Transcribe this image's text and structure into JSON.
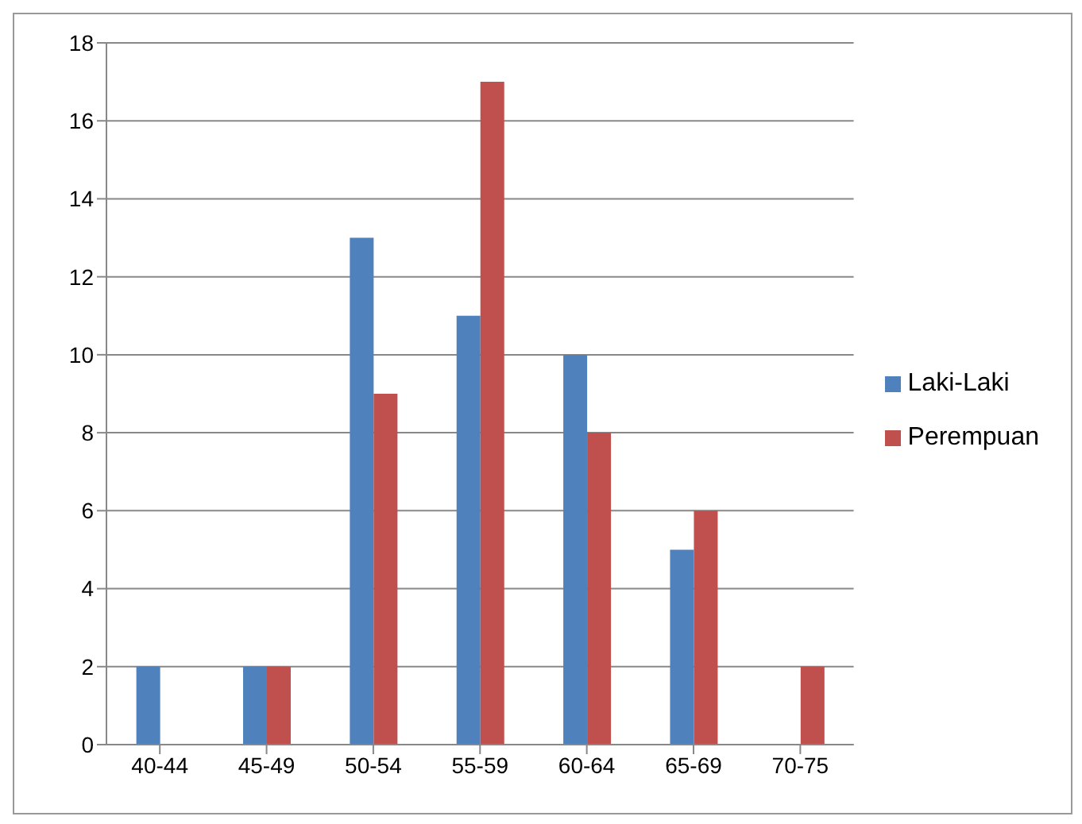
{
  "chart_data": {
    "type": "bar",
    "categories": [
      "40-44",
      "45-49",
      "50-54",
      "55-59",
      "60-64",
      "65-69",
      "70-75"
    ],
    "series": [
      {
        "name": "Laki-Laki",
        "color": "#4f81bd",
        "values": [
          2,
          2,
          13,
          11,
          10,
          5,
          0
        ]
      },
      {
        "name": "Perempuan",
        "color": "#c0504d",
        "values": [
          0,
          2,
          9,
          17,
          8,
          6,
          2
        ]
      }
    ],
    "ylim": [
      0,
      18
    ],
    "yticks": [
      0,
      2,
      4,
      6,
      8,
      10,
      12,
      14,
      16,
      18
    ],
    "grid": "y",
    "legend": "right"
  }
}
